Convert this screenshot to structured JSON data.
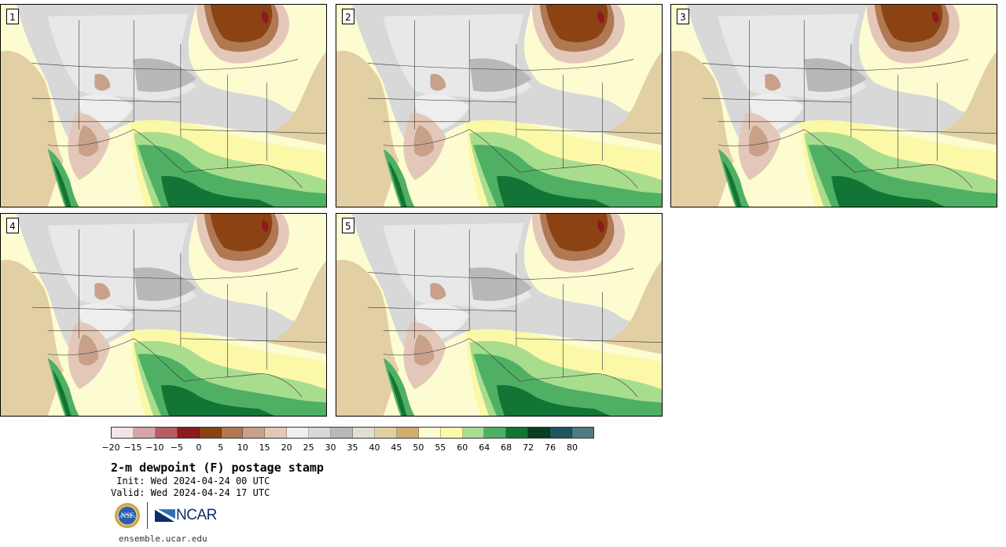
{
  "panels": [
    {
      "label": "1"
    },
    {
      "label": "2"
    },
    {
      "label": "3"
    },
    {
      "label": "4"
    },
    {
      "label": "5"
    }
  ],
  "colorbar": {
    "colors": [
      "#f4e4e6",
      "#d8a4aa",
      "#b65d63",
      "#8c1a1f",
      "#8b4313",
      "#b07853",
      "#c9a08a",
      "#e3c8b9",
      "#eeeeee",
      "#d8d8d8",
      "#b8b8b8",
      "#e3dfd0",
      "#e2d0a4",
      "#cfae70",
      "#fdfbd0",
      "#fbf8a7",
      "#a8dd8e",
      "#4fb064",
      "#127535",
      "#0a3e1e",
      "#1f5561",
      "#4f7b80"
    ],
    "tick_labels": [
      "−20",
      "−15",
      "−10",
      "−5",
      "0",
      "5",
      "10",
      "15",
      "20",
      "25",
      "30",
      "35",
      "40",
      "45",
      "50",
      "55",
      "60",
      "64",
      "68",
      "72",
      "76",
      "80"
    ]
  },
  "legend": {
    "title": "2-m dewpoint (F) postage stamp",
    "init": " Init: Wed 2024-04-24 00 UTC",
    "valid": "Valid: Wed 2024-04-24 17 UTC"
  },
  "logos": {
    "nsf": "NSF",
    "ncar": "NCAR"
  },
  "footer": {
    "url": "ensemble.ucar.edu"
  }
}
